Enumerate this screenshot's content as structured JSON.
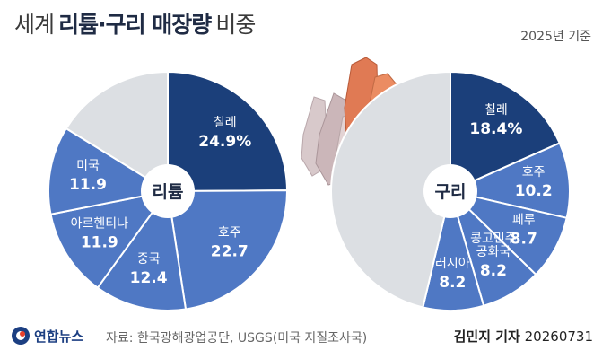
{
  "title": {
    "part1": "세계",
    "part2": "리튬·구리 매장량",
    "part3": "비중"
  },
  "year_note": "2025년 기준",
  "colors": {
    "dark_blue": "#1b3f7a",
    "mid_blue": "#4f78c4",
    "light_grey": "#dcdfe3",
    "stroke": "#ffffff"
  },
  "chart_data": [
    {
      "type": "pie",
      "center_label": "리튬",
      "slices": [
        {
          "label": "칠레",
          "value": 24.9,
          "display": "24.9%",
          "color": "#1b3f7a"
        },
        {
          "label": "호주",
          "value": 22.7,
          "display": "22.7",
          "color": "#4f78c4"
        },
        {
          "label": "중국",
          "value": 12.4,
          "display": "12.4",
          "color": "#4f78c4"
        },
        {
          "label": "아르헨티나",
          "value": 11.9,
          "display": "11.9",
          "color": "#4f78c4"
        },
        {
          "label": "미국",
          "value": 11.9,
          "display": "11.9",
          "color": "#4f78c4"
        },
        {
          "label": "",
          "value": 16.2,
          "display": "",
          "color": "#dcdfe3"
        }
      ]
    },
    {
      "type": "pie",
      "center_label": "구리",
      "slices": [
        {
          "label": "칠레",
          "value": 18.4,
          "display": "18.4%",
          "color": "#1b3f7a"
        },
        {
          "label": "호주",
          "value": 10.2,
          "display": "10.2",
          "color": "#4f78c4"
        },
        {
          "label": "페루",
          "value": 8.7,
          "display": "8.7",
          "color": "#4f78c4"
        },
        {
          "label": "콩고민주 공화국",
          "value": 8.2,
          "display": "8.2",
          "color": "#4f78c4"
        },
        {
          "label": "러시아",
          "value": 8.2,
          "display": "8.2",
          "color": "#4f78c4"
        },
        {
          "label": "",
          "value": 46.3,
          "display": "",
          "color": "#dcdfe3"
        }
      ]
    }
  ],
  "footer": {
    "logo": "연합뉴스",
    "source": "자료: 한국광해광업공단, USGS(미국 지질조사국)",
    "author": "김민지 기자",
    "date": "20260731"
  }
}
